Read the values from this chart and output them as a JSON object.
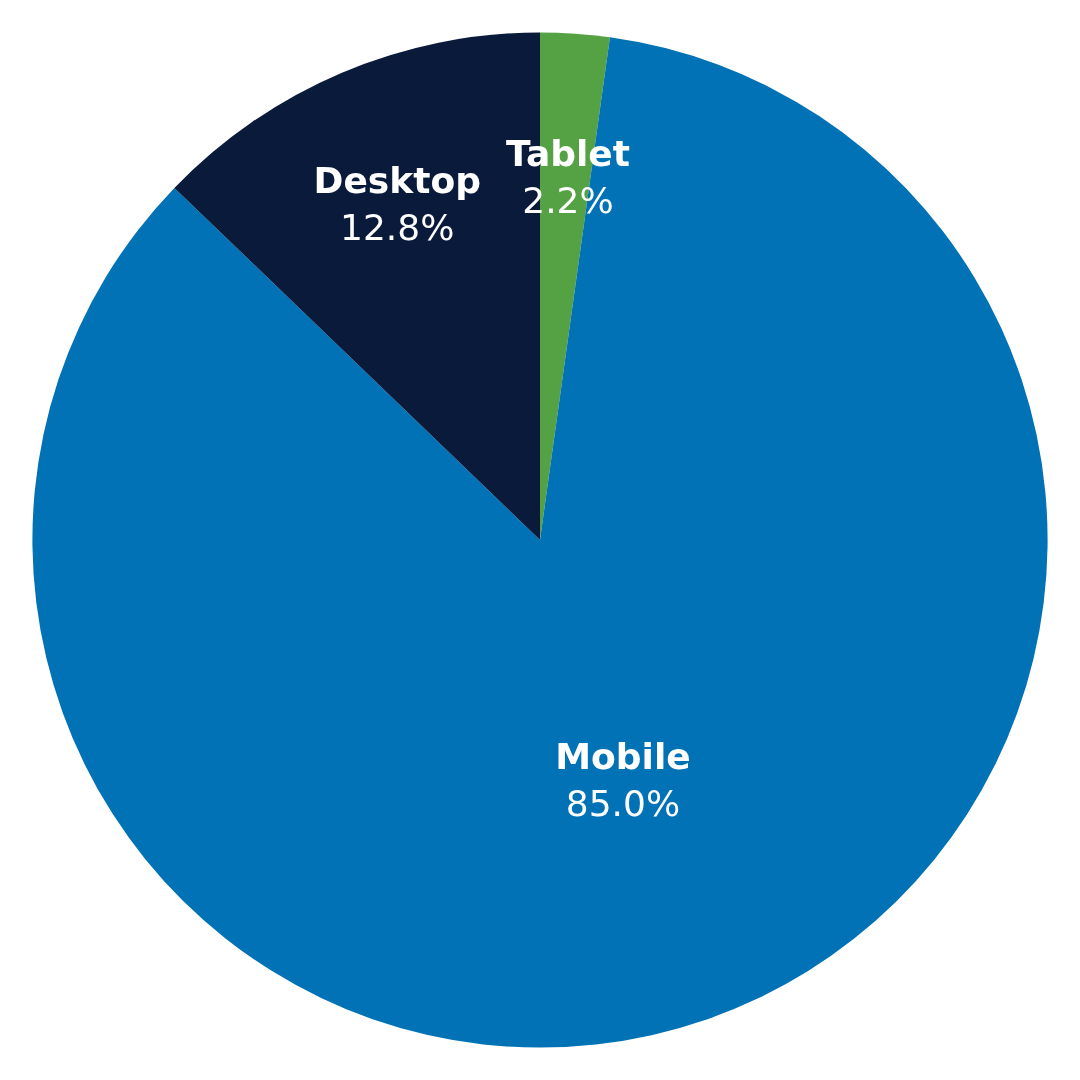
{
  "chart_data": {
    "type": "pie",
    "categories": [
      "Tablet",
      "Mobile",
      "Desktop"
    ],
    "values": [
      2.2,
      85.0,
      12.8
    ],
    "value_labels": [
      "2.2%",
      "85.0%",
      "12.8%"
    ],
    "colors": [
      "#55a244",
      "#0072b5",
      "#0a1a3a"
    ],
    "legend": false
  }
}
